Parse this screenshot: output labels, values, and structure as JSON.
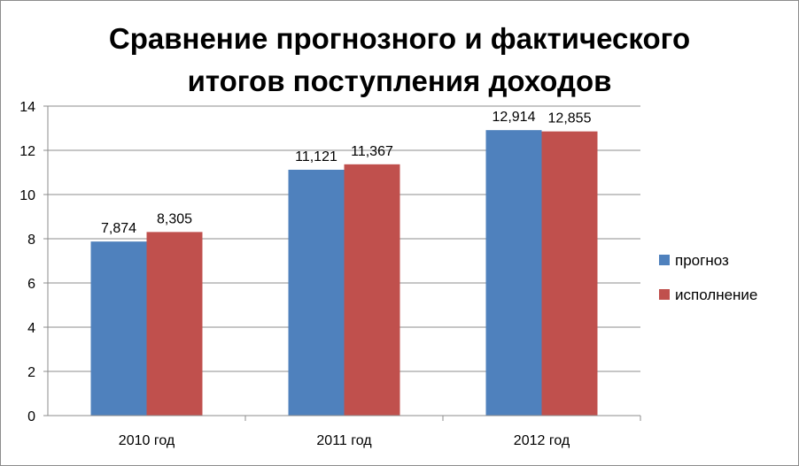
{
  "chart_data": {
    "type": "bar",
    "title_lines": [
      "Сравнение прогнозного и фактического",
      "итогов поступления доходов"
    ],
    "categories": [
      "2010 год",
      "2011 год",
      "2012 год"
    ],
    "series": [
      {
        "name": "прогноз",
        "values": [
          7.874,
          11.121,
          12.914
        ],
        "labels": [
          "7,874",
          "11,121",
          "12,914"
        ],
        "color": "#4f81bd"
      },
      {
        "name": "исполнение",
        "values": [
          8.305,
          11.367,
          12.855
        ],
        "labels": [
          "8,305",
          "11,367",
          "12,855"
        ],
        "color": "#c0504d"
      }
    ],
    "ylim": [
      0,
      14
    ],
    "yticks": [
      "0",
      "2",
      "4",
      "6",
      "8",
      "10",
      "12",
      "14"
    ],
    "grid": true,
    "legend_position": "right"
  }
}
